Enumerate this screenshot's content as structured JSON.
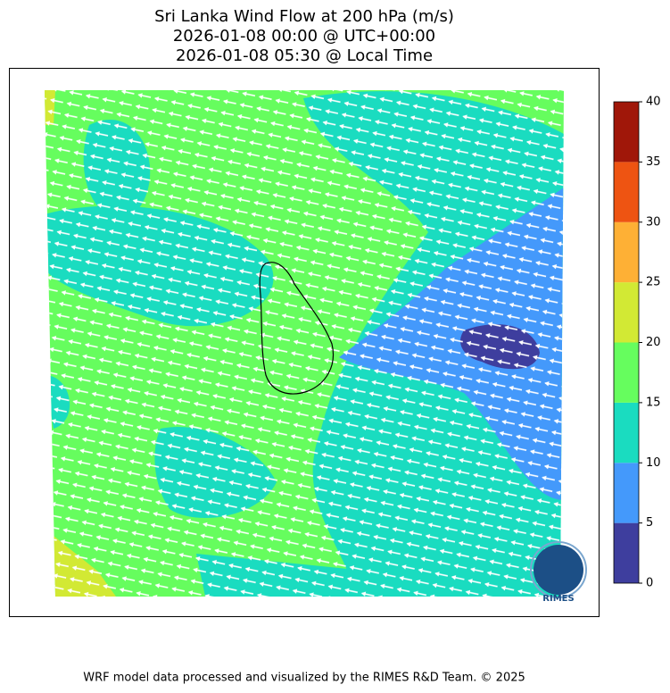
{
  "title": [
    "Sri Lanka Wind Flow at 200 hPa (m/s)",
    "2026-01-08 00:00 @ UTC+00:00",
    "2026-01-08 05:30 @ Local Time"
  ],
  "colorbar": {
    "levels": [
      0,
      5,
      10,
      15,
      20,
      25,
      30,
      35,
      40
    ],
    "colors": [
      "#3e3e9e",
      "#4499fb",
      "#1adcc0",
      "#66fd5e",
      "#d2e934",
      "#feb035",
      "#ee5412",
      "#a01709"
    ]
  },
  "logo": "RIMES",
  "footer": "WRF model data processed and visualized by the RIMES R&D Team. © 2025"
}
